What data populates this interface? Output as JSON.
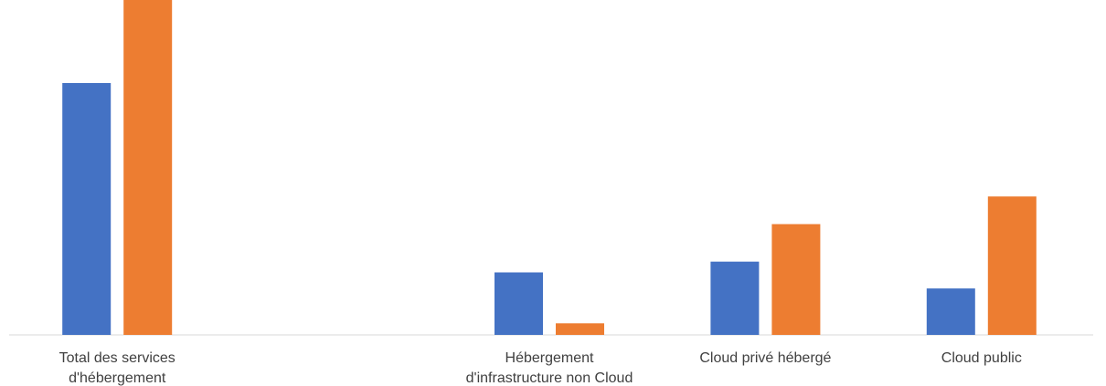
{
  "chart_data": {
    "type": "bar",
    "categories": [
      [
        "Total des services",
        "d'hébergement"
      ],
      [],
      [
        "Hébergement",
        "d'infrastructure non Cloud"
      ],
      [
        "Cloud privé hébergé"
      ],
      [
        "Cloud public"
      ]
    ],
    "series": [
      {
        "color": "#4472C4",
        "values": [
          28.2,
          null,
          7.0,
          8.2,
          5.2
        ]
      },
      {
        "color": "#ED7D31",
        "values": [
          37.5,
          null,
          1.3,
          12.4,
          15.5
        ]
      }
    ],
    "ylim": [
      0,
      37.5
    ],
    "grid": false,
    "legend": "none",
    "title": "",
    "xlabel": "",
    "ylabel": ""
  }
}
